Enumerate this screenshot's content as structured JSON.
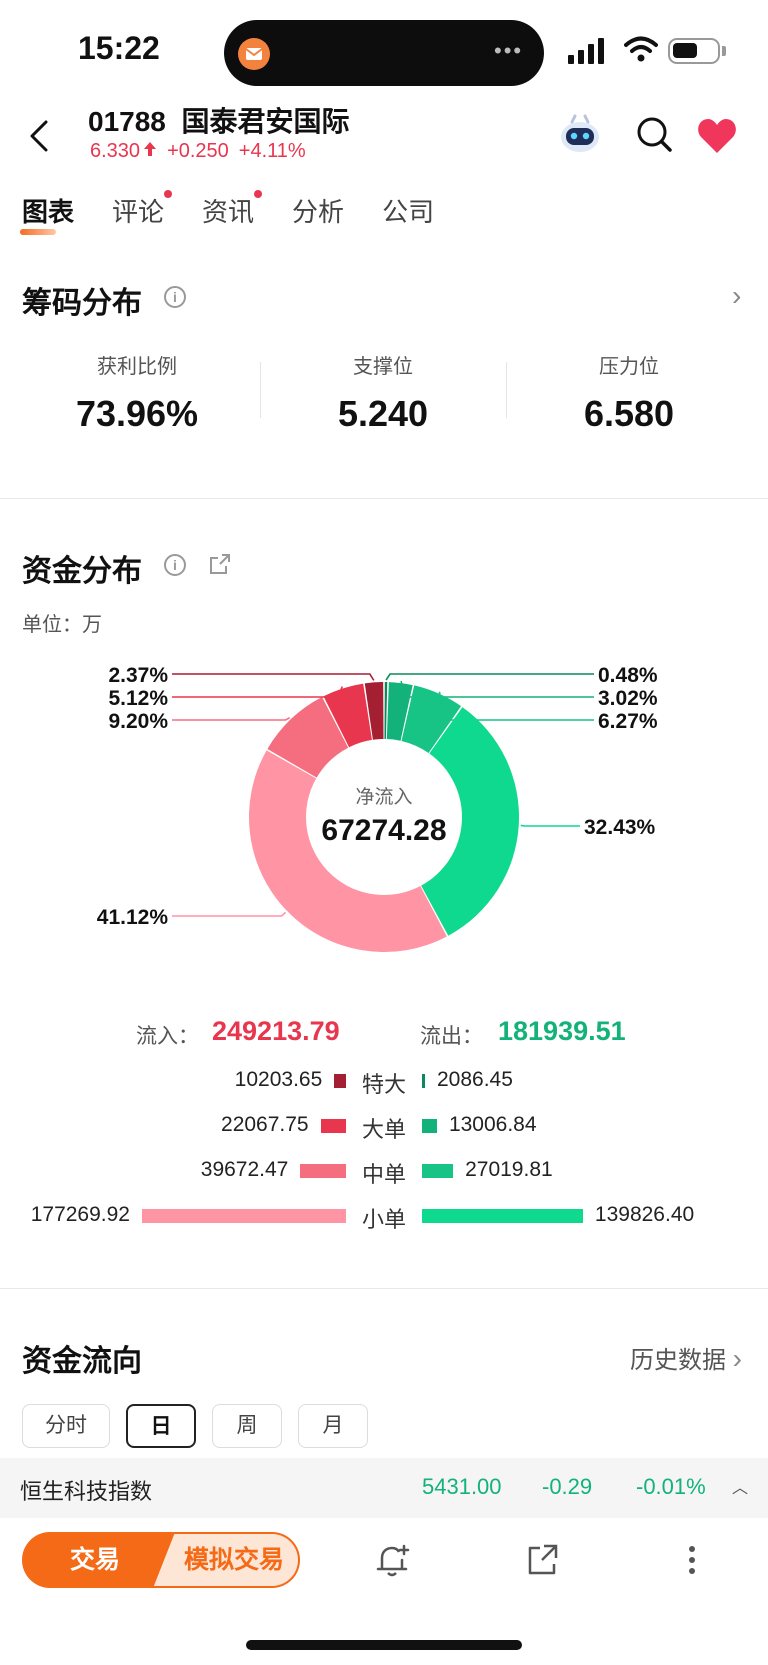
{
  "status": {
    "time": "15:22"
  },
  "header": {
    "code": "01788",
    "name": "国泰君安国际",
    "price": "6.330",
    "change": "+0.250",
    "change_pct": "+4.11%"
  },
  "tabs": [
    {
      "label": "图表",
      "active": true,
      "dot": false
    },
    {
      "label": "评论",
      "active": false,
      "dot": true
    },
    {
      "label": "资讯",
      "active": false,
      "dot": true
    },
    {
      "label": "分析",
      "active": false,
      "dot": false
    },
    {
      "label": "公司",
      "active": false,
      "dot": false
    }
  ],
  "chip_distribution": {
    "title": "筹码分布",
    "stats": [
      {
        "label": "获利比例",
        "value": "73.96%"
      },
      {
        "label": "支撑位",
        "value": "5.240"
      },
      {
        "label": "压力位",
        "value": "6.580"
      }
    ]
  },
  "fund_distribution": {
    "title": "资金分布",
    "unit": "单位：万",
    "center_label": "净流入",
    "center_value": "67274.28",
    "inflow_label": "流入：",
    "inflow_total": "249213.79",
    "outflow_label": "流出：",
    "outflow_total": "181939.51",
    "rows": [
      {
        "category": "特大",
        "inflow": "10203.65",
        "outflow": "2086.45"
      },
      {
        "category": "大单",
        "inflow": "22067.75",
        "outflow": "13006.84"
      },
      {
        "category": "中单",
        "inflow": "39672.47",
        "outflow": "27019.81"
      },
      {
        "category": "小单",
        "inflow": "177269.92",
        "outflow": "139826.40"
      }
    ]
  },
  "chart_data": {
    "type": "pie",
    "subtype": "donut",
    "slices": [
      {
        "label": "0.48%",
        "value": 0.48,
        "color": "#0a8a5c"
      },
      {
        "label": "3.02%",
        "value": 3.02,
        "color": "#12b27a"
      },
      {
        "label": "6.27%",
        "value": 6.27,
        "color": "#17c486"
      },
      {
        "label": "32.43%",
        "value": 32.43,
        "color": "#0fd98f"
      },
      {
        "label": "41.12%",
        "value": 41.12,
        "color": "#ff94a4"
      },
      {
        "label": "9.20%",
        "value": 9.2,
        "color": "#f56e80"
      },
      {
        "label": "5.12%",
        "value": 5.12,
        "color": "#e8364f"
      },
      {
        "label": "2.37%",
        "value": 2.37,
        "color": "#a51f33"
      }
    ]
  },
  "fund_flow": {
    "title": "资金流向",
    "history_label": "历史数据",
    "periods": [
      "分时",
      "日",
      "周",
      "月"
    ],
    "selected_period": "日"
  },
  "ticker": {
    "name": "恒生科技指数",
    "value": "5431.00",
    "change": "-0.29",
    "change_pct": "-0.01%"
  },
  "bottom": {
    "trade_label": "交易",
    "sim_label": "模拟交易"
  },
  "colors": {
    "up": "#e8364f",
    "down": "#12b27a",
    "accent": "#f46a16"
  }
}
